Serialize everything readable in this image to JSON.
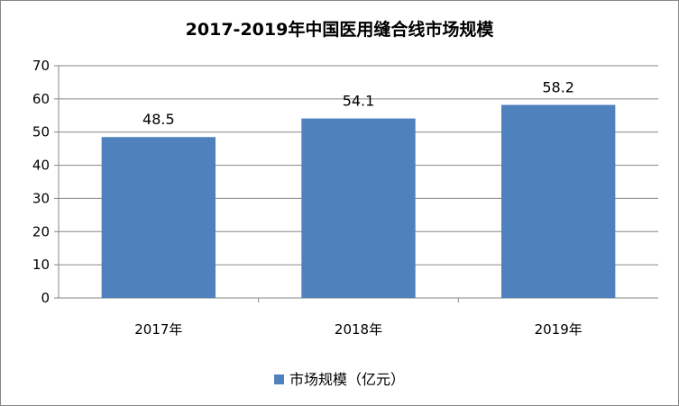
{
  "chart_data": {
    "type": "bar",
    "title": "2017-2019年中国医用缝合线市场规模",
    "categories": [
      "2017年",
      "2018年",
      "2019年"
    ],
    "series": [
      {
        "name": "市场规模（亿元）",
        "values": [
          48.5,
          54.1,
          58.2
        ]
      }
    ],
    "ylim": [
      0,
      70
    ],
    "yticks": [
      0,
      10,
      20,
      30,
      40,
      50,
      60,
      70
    ],
    "grid": true,
    "legend": "bottom",
    "bar_color": "#4F81BD",
    "data_labels": [
      "48.5",
      "54.1",
      "58.2"
    ]
  }
}
